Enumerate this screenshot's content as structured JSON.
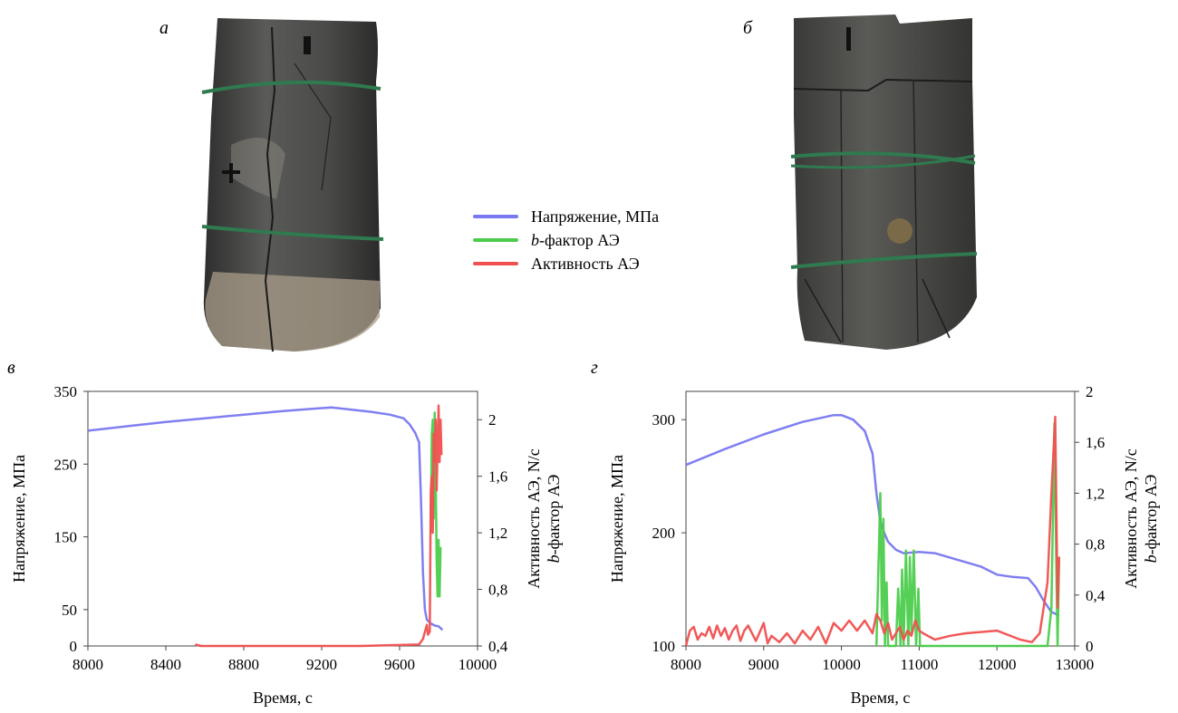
{
  "panels": {
    "a": "а",
    "b": "б",
    "c": "в",
    "d": "г"
  },
  "legend": {
    "stress": "Напряжение, МПа",
    "bfactor_prefix": "b",
    "bfactor_rest": "-фактор АЭ",
    "activity": "Активность АЭ"
  },
  "colors": {
    "stress": "#7878f0",
    "bfactor": "#4ccc4c",
    "activity": "#f05050",
    "rock_dark": "#3c3c3c",
    "band": "#2f7a4e"
  },
  "chart_data": [
    {
      "type": "line",
      "panel": "в",
      "xlabel": "Время, с",
      "ylabel_left": "Напряжение, МПа",
      "ylabel_right_1": "Активность АЭ, N/c",
      "ylabel_right_2_prefix": "b",
      "ylabel_right_2_rest": "-фактор АЭ",
      "xlim": [
        8000,
        10000
      ],
      "ylim_left": [
        0,
        350
      ],
      "ylim_right": [
        0.4,
        2.2
      ],
      "x_ticks": [
        "8000",
        "8400",
        "8800",
        "9200",
        "9600",
        "10000"
      ],
      "y_left_ticks": [
        "0",
        "50",
        "150",
        "250",
        "350"
      ],
      "y_right_ticks": [
        "0,4",
        "0,8",
        "1,2",
        "1,6",
        "2"
      ],
      "series": [
        {
          "key": "stress",
          "axis": "left",
          "x": [
            8000,
            8200,
            8400,
            8600,
            8800,
            9000,
            9150,
            9250,
            9350,
            9450,
            9550,
            9620,
            9650,
            9680,
            9700,
            9710,
            9720,
            9730,
            9740,
            9760,
            9780,
            9800,
            9820
          ],
          "y": [
            296,
            302,
            308,
            313,
            318,
            323,
            326,
            328,
            325,
            322,
            318,
            313,
            305,
            293,
            280,
            200,
            100,
            50,
            36,
            31,
            28,
            27,
            22
          ]
        },
        {
          "key": "bfactor",
          "axis": "right",
          "x": [
            9760,
            9765,
            9770,
            9775,
            9780,
            9785,
            9790,
            9795,
            9800,
            9805,
            9810
          ],
          "y": [
            1.2,
            1.9,
            2.0,
            1.3,
            2.05,
            1.6,
            1.0,
            0.75,
            1.15,
            0.75,
            1.1
          ]
        },
        {
          "key": "activity",
          "axis": "right",
          "x": [
            8550,
            8580,
            9000,
            9400,
            9700,
            9720,
            9730,
            9740,
            9745,
            9755,
            9760,
            9765,
            9770,
            9775,
            9780,
            9785,
            9790,
            9795,
            9800,
            9805,
            9810,
            9815
          ],
          "y": [
            0.41,
            0.4,
            0.4,
            0.4,
            0.41,
            0.45,
            0.5,
            0.55,
            0.48,
            0.5,
            1.5,
            1.6,
            1.2,
            1.9,
            1.7,
            2.0,
            1.5,
            1.8,
            2.1,
            1.7,
            2.0,
            1.75
          ]
        }
      ]
    },
    {
      "type": "line",
      "panel": "г",
      "xlabel": "Время, с",
      "ylabel_left": "Напряжение, МПа",
      "ylabel_right_1": "Активность АЭ, N/c",
      "ylabel_right_2_prefix": "b",
      "ylabel_right_2_rest": "-фактор АЭ",
      "xlim": [
        8000,
        13000
      ],
      "ylim_left": [
        100,
        325
      ],
      "ylim_right": [
        0,
        2.0
      ],
      "x_ticks": [
        "8000",
        "9000",
        "10000",
        "11000",
        "12000",
        "13000"
      ],
      "y_left_ticks": [
        "100",
        "200",
        "300"
      ],
      "y_right_ticks": [
        "0",
        "0,4",
        "0,8",
        "1,2",
        "1,6",
        "2"
      ],
      "series": [
        {
          "key": "stress",
          "axis": "left",
          "x": [
            8000,
            8500,
            9000,
            9500,
            9900,
            10000,
            10150,
            10300,
            10400,
            10450,
            10500,
            10550,
            10600,
            10700,
            10800,
            11000,
            11200,
            11400,
            11600,
            11800,
            12000,
            12200,
            12400,
            12500,
            12600,
            12700,
            12800
          ],
          "y": [
            260,
            274,
            287,
            298,
            304,
            304,
            300,
            290,
            270,
            235,
            210,
            200,
            192,
            185,
            182,
            183,
            182,
            178,
            174,
            170,
            163,
            161,
            160,
            152,
            140,
            130,
            127
          ]
        },
        {
          "key": "bfactor",
          "axis": "right",
          "x": [
            10450,
            10500,
            10520,
            10540,
            10560,
            10580,
            10600,
            10620,
            10650,
            10700,
            10730,
            10760,
            10780,
            10800,
            10830,
            10860,
            10880,
            10900,
            10930,
            10960,
            10990,
            11010,
            11050,
            11200,
            11600,
            12000,
            12400,
            12600,
            12650,
            12700,
            12740,
            12760,
            12780,
            12800
          ],
          "y": [
            0.0,
            1.2,
            0.2,
            1.0,
            0.0,
            0.5,
            0.0,
            0.0,
            0.0,
            0.0,
            0.45,
            0.0,
            0.6,
            0.0,
            0.75,
            0.0,
            0.7,
            0.1,
            0.75,
            0.0,
            0.45,
            0.0,
            0.0,
            0.0,
            0.0,
            0.0,
            0.0,
            0.0,
            0.0,
            0.3,
            1.75,
            0.8,
            0.0,
            0.7
          ]
        },
        {
          "key": "activity",
          "axis": "right",
          "x": [
            8000,
            8050,
            8100,
            8150,
            8200,
            8250,
            8300,
            8350,
            8400,
            8450,
            8500,
            8550,
            8600,
            8650,
            8700,
            8750,
            8800,
            8900,
            9000,
            9050,
            9100,
            9200,
            9300,
            9400,
            9500,
            9600,
            9700,
            9800,
            9900,
            10000,
            10100,
            10200,
            10300,
            10400,
            10450,
            10500,
            10550,
            10600,
            10650,
            10700,
            10750,
            10800,
            10850,
            10900,
            10950,
            11000,
            11050,
            11200,
            11400,
            11600,
            12000,
            12300,
            12450,
            12550,
            12600,
            12650,
            12700,
            12750,
            12780,
            12800
          ],
          "y": [
            0.0,
            0.12,
            0.15,
            0.05,
            0.1,
            0.08,
            0.15,
            0.06,
            0.16,
            0.08,
            0.14,
            0.05,
            0.12,
            0.16,
            0.04,
            0.12,
            0.16,
            0.04,
            0.18,
            0.02,
            0.08,
            0.03,
            0.1,
            0.02,
            0.12,
            0.05,
            0.15,
            0.02,
            0.18,
            0.12,
            0.2,
            0.12,
            0.2,
            0.1,
            0.25,
            0.2,
            0.1,
            0.18,
            0.05,
            0.1,
            0.15,
            0.05,
            0.12,
            0.08,
            0.2,
            0.12,
            0.1,
            0.05,
            0.08,
            0.1,
            0.12,
            0.05,
            0.03,
            0.1,
            0.3,
            0.5,
            1.2,
            1.8,
            0.3,
            0.7
          ]
        }
      ]
    }
  ]
}
